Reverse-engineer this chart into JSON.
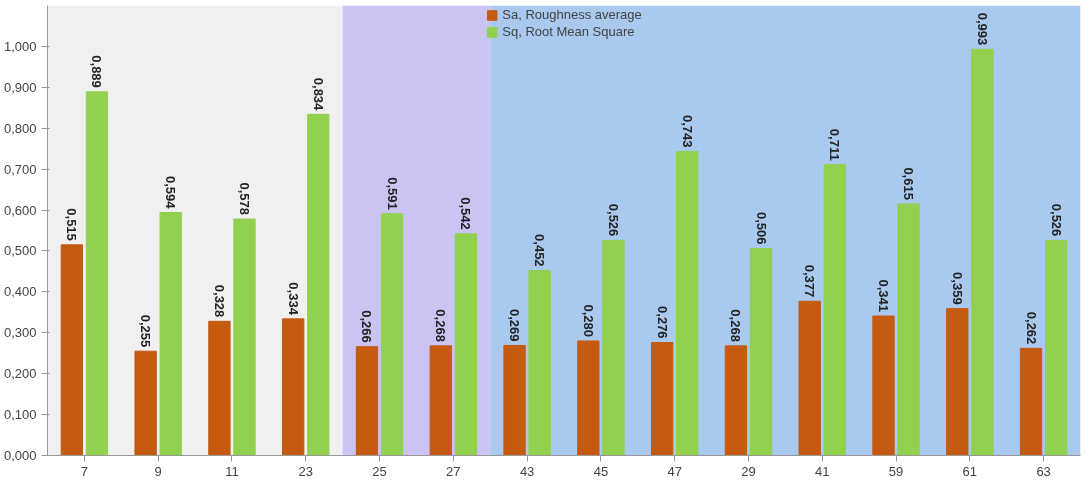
{
  "chart_data": {
    "type": "bar",
    "categories": [
      "7",
      "9",
      "11",
      "23",
      "25",
      "27",
      "43",
      "45",
      "47",
      "29",
      "41",
      "59",
      "61",
      "63"
    ],
    "series": [
      {
        "name": "Sa, Roughness average",
        "color": "#c55a11",
        "values": [
          0.515,
          0.255,
          0.328,
          0.334,
          0.266,
          0.268,
          0.269,
          0.28,
          0.276,
          0.268,
          0.377,
          0.341,
          0.359,
          0.262
        ],
        "value_labels": [
          "0,515",
          "0,255",
          "0,328",
          "0,334",
          "0,266",
          "0,268",
          "0,269",
          "0,280",
          "0,276",
          "0,268",
          "0,377",
          "0,341",
          "0,359",
          "0,262"
        ]
      },
      {
        "name": "Sq, Root Mean Square",
        "color": "#92d050",
        "values": [
          0.889,
          0.594,
          0.578,
          0.834,
          0.591,
          0.542,
          0.452,
          0.526,
          0.743,
          0.506,
          0.711,
          0.615,
          0.993,
          0.526
        ],
        "value_labels": [
          "0,889",
          "0,594",
          "0,578",
          "0,834",
          "0,591",
          "0,542",
          "0,452",
          "0,526",
          "0,743",
          "0,506",
          "0,711",
          "0,615",
          "0,993",
          "0,526"
        ]
      }
    ],
    "ylim": [
      0,
      1.1
    ],
    "yticks": [
      {
        "value": 0,
        "label": "0,000"
      },
      {
        "value": 0.1,
        "label": "0,100"
      },
      {
        "value": 0.2,
        "label": "0,200"
      },
      {
        "value": 0.3,
        "label": "0,300"
      },
      {
        "value": 0.4,
        "label": "0,400"
      },
      {
        "value": 0.5,
        "label": "0,500"
      },
      {
        "value": 0.6,
        "label": "0,600"
      },
      {
        "value": 0.7,
        "label": "0,700"
      },
      {
        "value": 0.8,
        "label": "0,800"
      },
      {
        "value": 0.9,
        "label": "0,900"
      },
      {
        "value": 1.0,
        "label": "1,000"
      }
    ],
    "bands": [
      {
        "axis": "x",
        "from": "7",
        "to": "23",
        "color": "#f0f0f0"
      },
      {
        "axis": "x",
        "from": "25",
        "to": "27",
        "color": "#cbc3f2"
      },
      {
        "axis": "x",
        "from": "43",
        "to": "63",
        "color": "#a9c9ee"
      }
    ],
    "legend": "top"
  }
}
